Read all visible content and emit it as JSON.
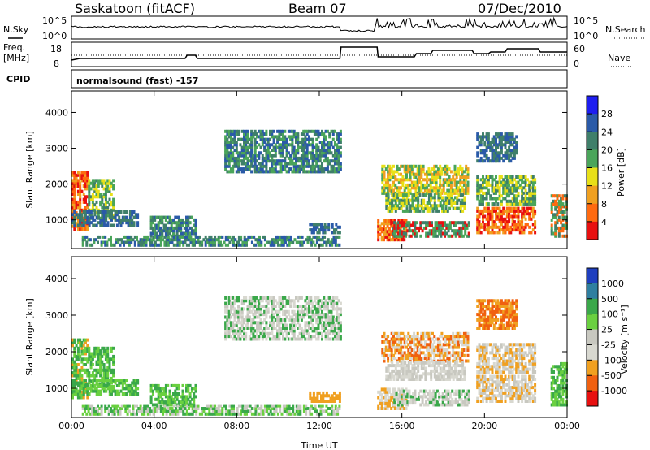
{
  "header": {
    "title": "Saskatoon (fitACF)",
    "beam": "Beam 07",
    "date": "07/Dec/2010"
  },
  "panels": {
    "nsky_label": "N.Sky",
    "nsearch_label": "N.Search",
    "freq_label_1": "Freq.",
    "freq_label_2": "[MHz]",
    "nave_label": "Nave",
    "cpid_label": "CPID",
    "cpid_text": "normalsound (fast) -157",
    "noise_ticks": [
      "10^5",
      "10^0"
    ],
    "freq_ticks": [
      "18",
      "8"
    ],
    "nave_ticks": [
      "60",
      "0"
    ]
  },
  "chart_data": [
    {
      "type": "heatmap",
      "name": "power",
      "ylabel": "Slant Range [km]",
      "yticks": [
        "4000",
        "3000",
        "2000",
        "1000"
      ],
      "ylim": [
        200,
        4600
      ],
      "colorbar_label": "Power [dB]",
      "colorbar_ticks": [
        "28",
        "24",
        "20",
        "16",
        "12",
        "8",
        "4"
      ],
      "colors": [
        "#1e1ef0",
        "#2a5aa8",
        "#3f7f6a",
        "#4aa55a",
        "#e8e018",
        "#f0a020",
        "#ff6a10",
        "#e81010"
      ]
    },
    {
      "type": "heatmap",
      "name": "velocity",
      "xlabel": "Time UT",
      "ylabel": "Slant Range [km]",
      "yticks": [
        "4000",
        "3000",
        "2000",
        "1000"
      ],
      "ylim": [
        200,
        4600
      ],
      "xticks": [
        "00:00",
        "04:00",
        "08:00",
        "12:00",
        "16:00",
        "20:00",
        "00:00"
      ],
      "colorbar_label": "Velocity [m s⁻¹]",
      "colorbar_ticks": [
        "1000",
        "500",
        "100",
        "25",
        "-25",
        "-100",
        "-500",
        "-1000"
      ],
      "colors": [
        "#1f3fbf",
        "#2f7fa0",
        "#3aa84a",
        "#6ad040",
        "#c8c8c0",
        "#d8d8d0",
        "#f0a020",
        "#f06010",
        "#e81010"
      ]
    }
  ]
}
